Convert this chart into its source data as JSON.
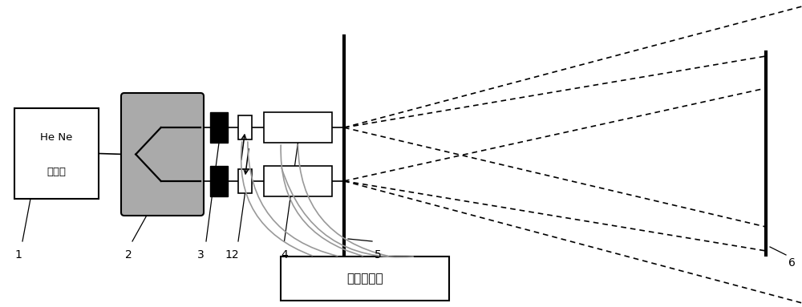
{
  "bg_color": "#ffffff",
  "fig_width": 10.0,
  "fig_height": 3.83,
  "laser_text1": "He Ne",
  "laser_text2": "激光器",
  "signal_text": "信号发生器",
  "label_1": "1",
  "label_2": "2",
  "label_3": "3",
  "label_12": "12",
  "label_4": "4",
  "label_5": "5",
  "label_6": "6",
  "splitter_fc": "#aaaaaa",
  "beam_dot_pattern": [
    4,
    3
  ]
}
